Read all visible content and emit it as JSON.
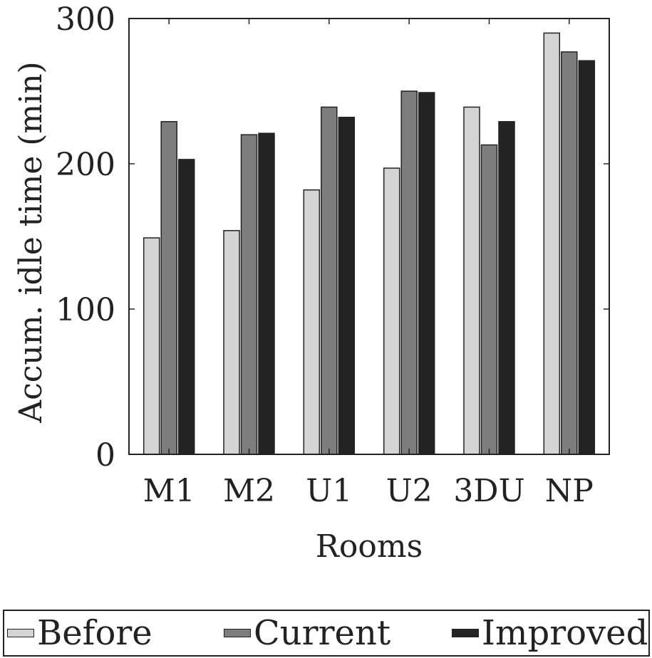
{
  "chart_data": {
    "type": "bar",
    "categories": [
      "M1",
      "M2",
      "U1",
      "U2",
      "3DU",
      "NP"
    ],
    "series": [
      {
        "name": "Before",
        "color": "#d4d4d4",
        "values": [
          149,
          154,
          182,
          197,
          239,
          290
        ]
      },
      {
        "name": "Current",
        "color": "#7d7d7d",
        "values": [
          229,
          220,
          239,
          250,
          213,
          277
        ]
      },
      {
        "name": "Improved",
        "color": "#232323",
        "values": [
          203,
          221,
          232,
          249,
          229,
          271
        ]
      }
    ],
    "xlabel": "Rooms",
    "ylabel": "Accum. idle time (min)",
    "ylim": [
      0,
      300
    ],
    "yticks": [
      "0",
      "100",
      "200",
      "300"
    ],
    "grid": false,
    "legend_position": "bottom"
  }
}
